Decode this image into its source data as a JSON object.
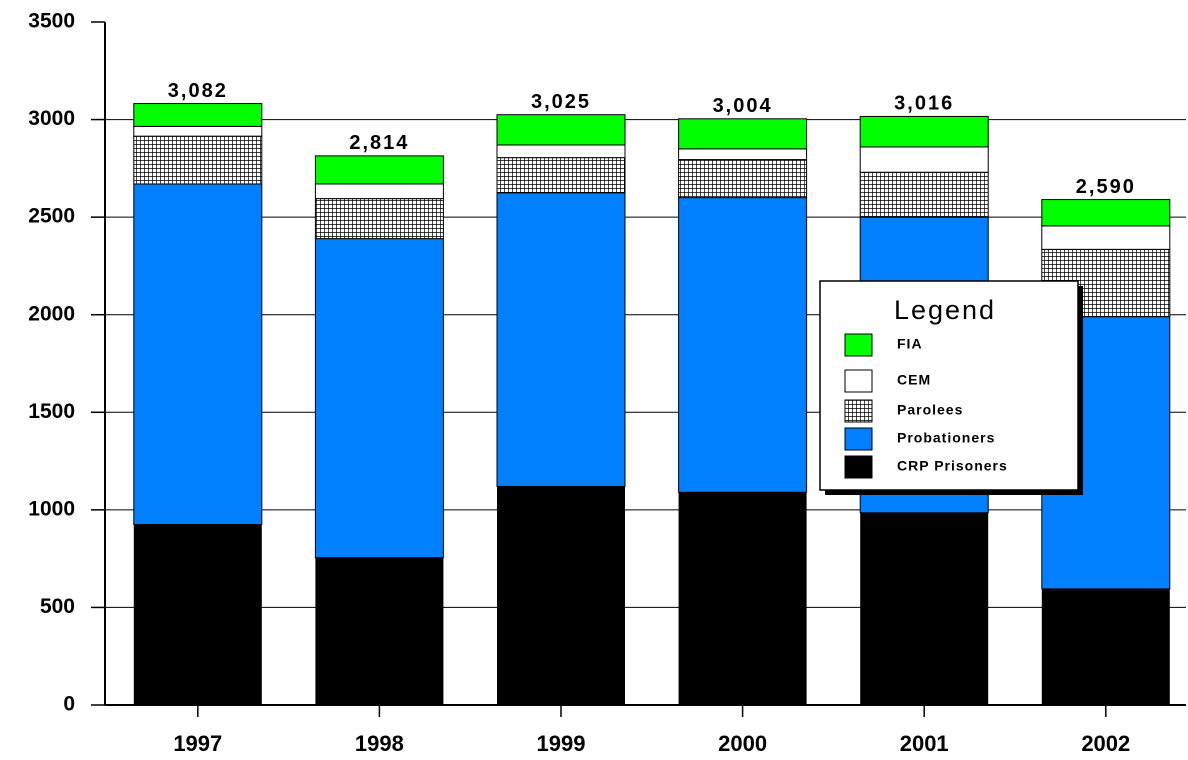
{
  "chart_data": {
    "type": "stacked_bar",
    "categories": [
      "1997",
      "1998",
      "1999",
      "2000",
      "2001",
      "2002"
    ],
    "series": [
      {
        "name": "CRP Prisoners",
        "color": "#000000",
        "values": [
          925,
          755,
          1120,
          1090,
          985,
          595
        ]
      },
      {
        "name": "Probationers",
        "color": "#0080ff",
        "values": [
          1745,
          1635,
          1505,
          1510,
          1515,
          1395
        ]
      },
      {
        "name": "Parolees",
        "color": "#808080",
        "pattern": "checker",
        "values": [
          245,
          205,
          180,
          195,
          230,
          345
        ]
      },
      {
        "name": "CEM",
        "color": "#ffffff",
        "values": [
          50,
          75,
          65,
          55,
          130,
          120
        ]
      },
      {
        "name": "FIA",
        "color": "#00ff00",
        "values": [
          117,
          144,
          155,
          154,
          156,
          135
        ]
      }
    ],
    "totals": [
      3082,
      2814,
      3025,
      3004,
      3016,
      2590
    ],
    "total_labels": [
      "3,082",
      "2,814",
      "3,025",
      "3,004",
      "3,016",
      "2,590"
    ],
    "legend_title": "Legend",
    "legend": "right",
    "ylim": [
      0,
      3500
    ],
    "yticks": [
      0,
      500,
      1000,
      1500,
      2000,
      2500,
      3000,
      3500
    ],
    "grid": true
  }
}
